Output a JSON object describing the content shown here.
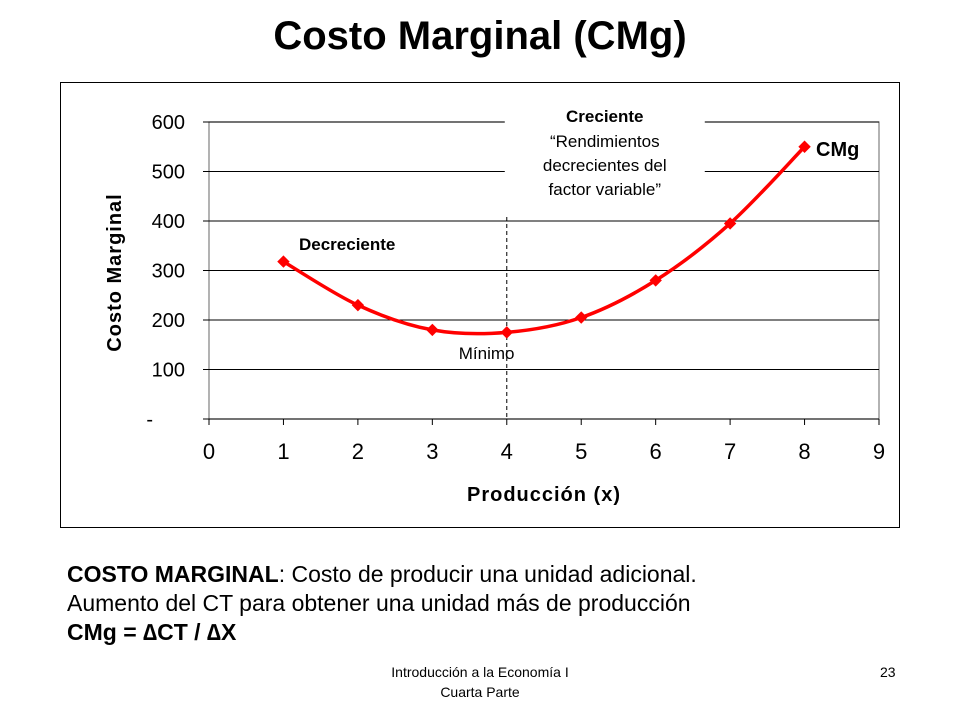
{
  "title": "Costo Marginal (CMg)",
  "chart_data": {
    "type": "line",
    "xlabel": "Producción (x)",
    "ylabel": "Costo Marginal",
    "xlim": [
      0,
      9
    ],
    "ylim": [
      0,
      600
    ],
    "x_ticks": [
      "0",
      "1",
      "2",
      "3",
      "4",
      "5",
      "6",
      "7",
      "8",
      "9"
    ],
    "y_ticks": [
      "-",
      "100",
      "200",
      "300",
      "400",
      "500",
      "600"
    ],
    "grid": "horizontal",
    "series": [
      {
        "name": "CMg",
        "color": "#ff0000",
        "x": [
          1,
          2,
          3,
          4,
          5,
          6,
          7,
          8
        ],
        "y": [
          318,
          230,
          180,
          175,
          205,
          280,
          395,
          550
        ]
      }
    ],
    "annotations": {
      "decreasing": "Decreciente",
      "increasing_title": "Creciente",
      "increasing_lines": [
        "“Rendimientos",
        "decrecientes del",
        "factor variable”"
      ],
      "minimum": "Mínimo",
      "minimum_x": 4
    }
  },
  "body": {
    "line1_bold": "COSTO MARGINAL",
    "line1_rest": ": Costo de producir una unidad adicional.",
    "line2": "Aumento del CT para obtener una unidad más de producción",
    "formula": "CMg = ∆CT / ∆X"
  },
  "footer": {
    "line1": "Introducción a la Economía I",
    "line2": "Cuarta Parte",
    "page_number": "23"
  }
}
